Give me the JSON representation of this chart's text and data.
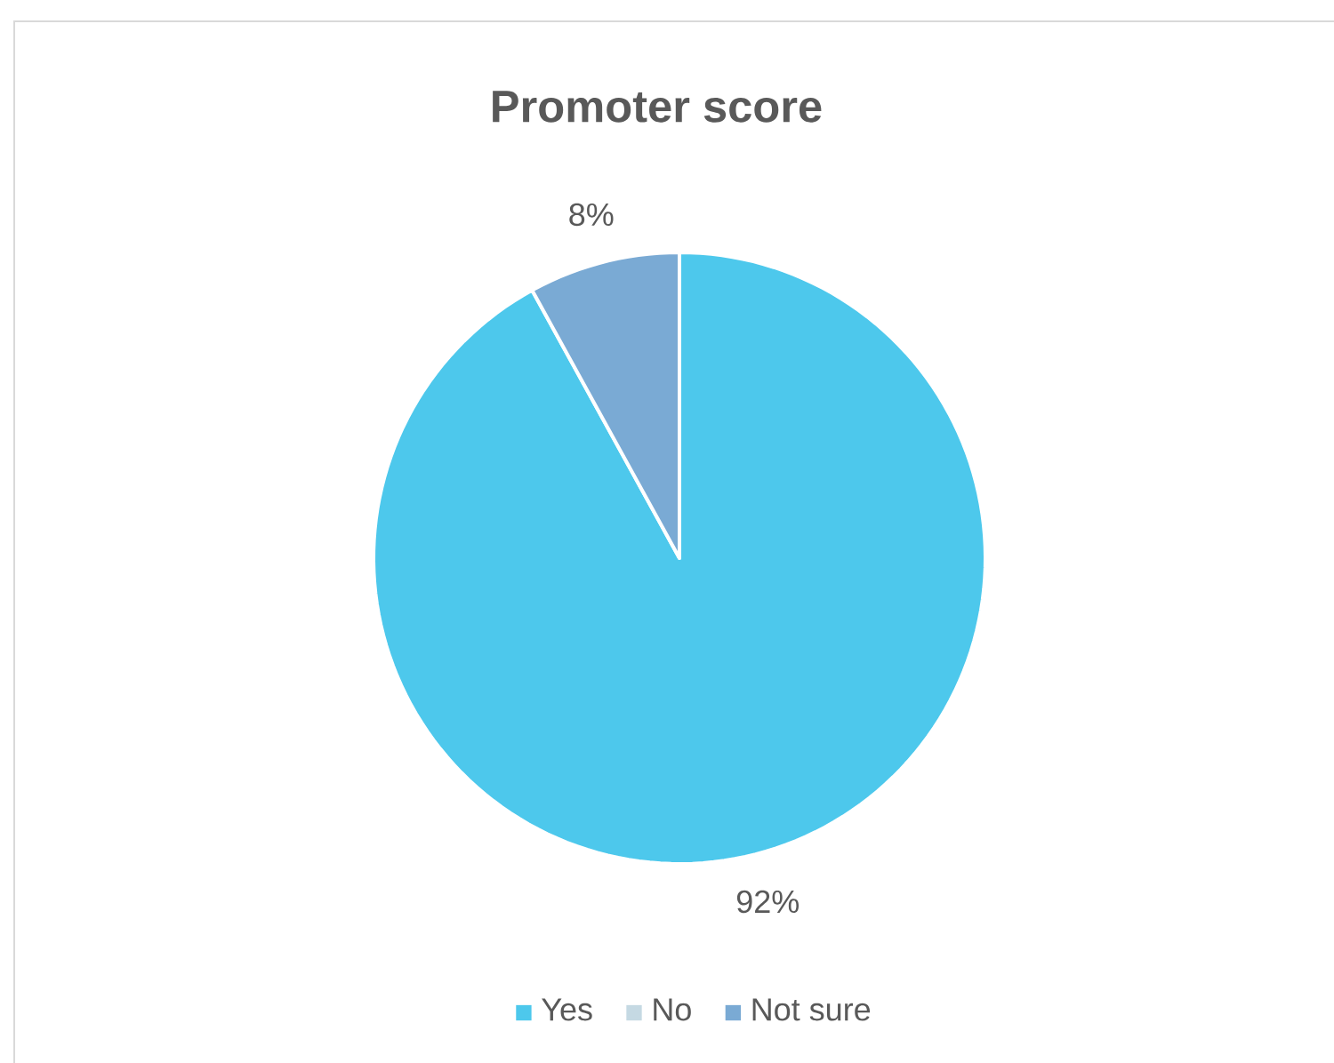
{
  "chart_data": {
    "type": "pie",
    "title": "Promoter score",
    "categories": [
      "Yes",
      "No",
      "Not sure"
    ],
    "values": [
      92,
      0,
      8
    ],
    "colors": [
      "#4dc8ec",
      "#c5d9e3",
      "#7aaad4"
    ],
    "value_labels": [
      "92%",
      null,
      "8%"
    ],
    "legend": "bottom"
  }
}
